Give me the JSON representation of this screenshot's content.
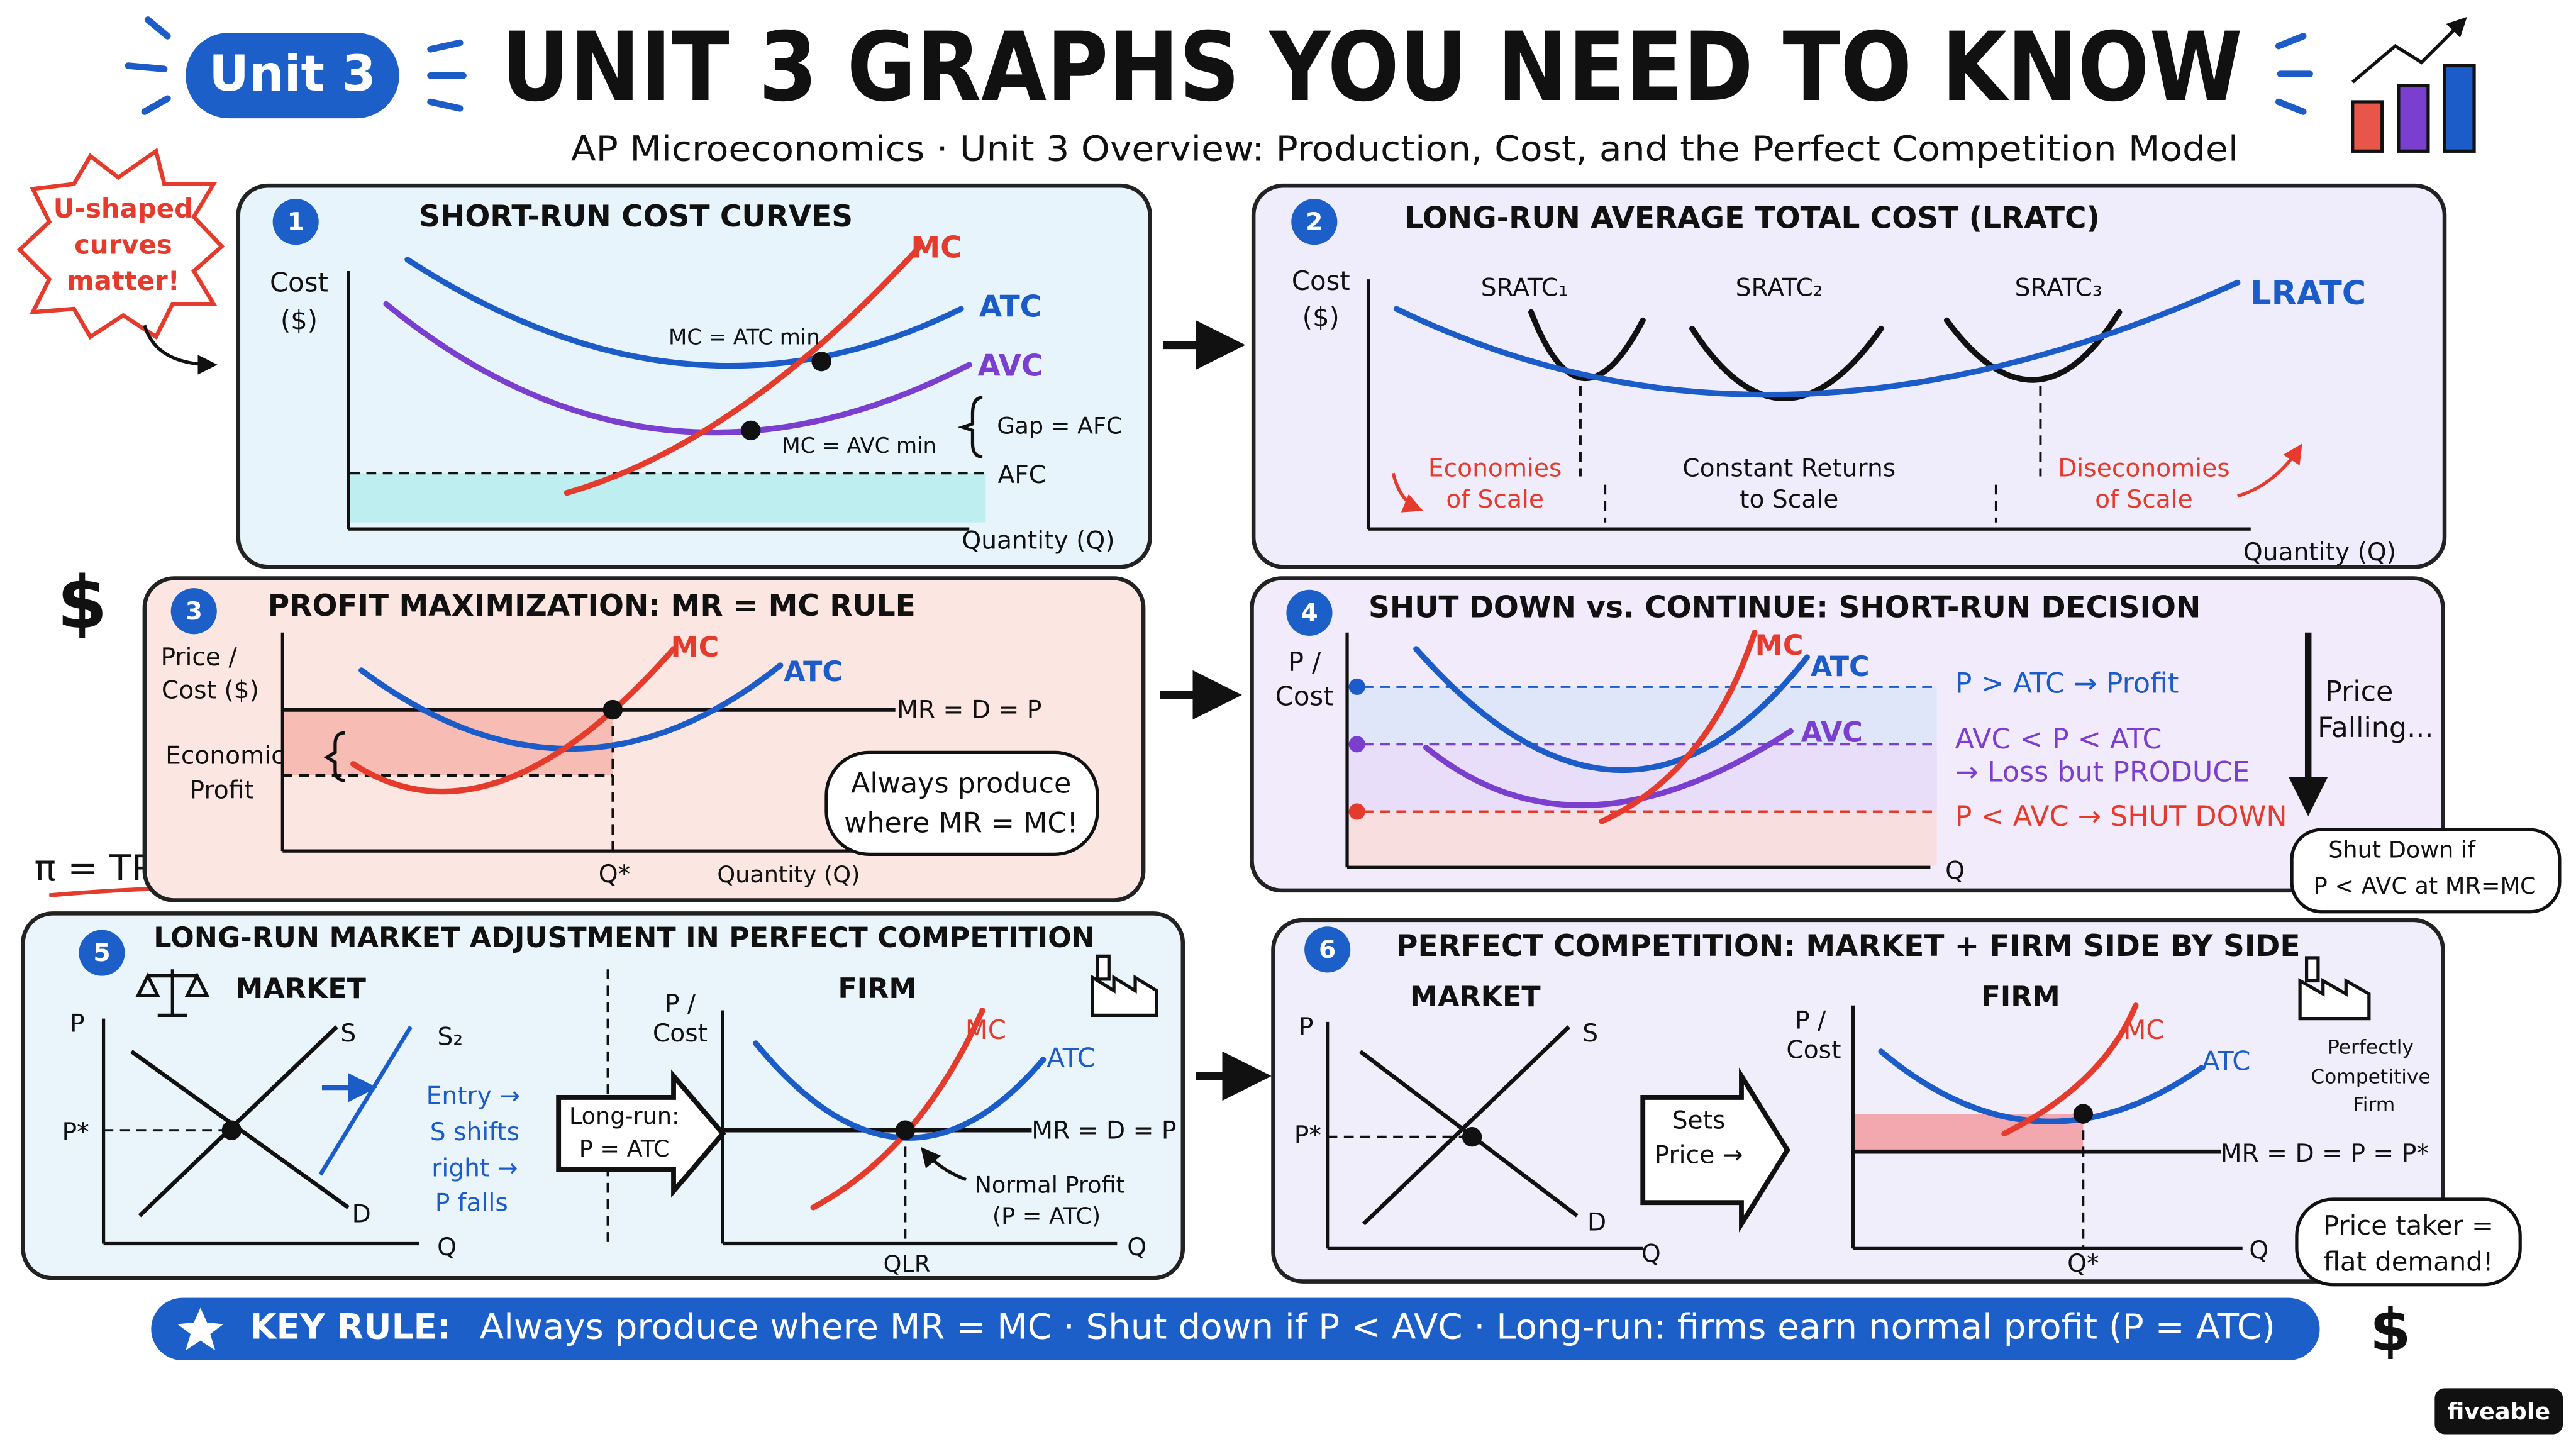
{
  "header": {
    "badge": "Unit 3",
    "title": "UNIT 3 GRAPHS YOU NEED TO KNOW",
    "subtitle": "AP Microeconomics · Unit 3 Overview: Production, Cost, and the Perfect Competition Model"
  },
  "side_notes": {
    "u_shaped": [
      "U-shaped",
      "curves",
      "matter!"
    ],
    "profit_formula": "π = TR − TC",
    "dollar_sign": "$"
  },
  "panels": [
    {
      "number": "1",
      "title": "SHORT-RUN COST CURVES",
      "y_axis": [
        "Cost",
        "($)"
      ],
      "x_axis": "Quantity (Q)",
      "curves": [
        "MC",
        "ATC",
        "AVC",
        "AFC"
      ],
      "annotations": [
        "MC = ATC min",
        "MC = AVC min",
        "Gap = AFC"
      ]
    },
    {
      "number": "2",
      "title": "LONG-RUN AVERAGE TOTAL COST (LRATC)",
      "y_axis": [
        "Cost",
        "($)"
      ],
      "x_axis": "Quantity (Q)",
      "curves": [
        "SRATC₁",
        "SRATC₂",
        "SRATC₃",
        "LRATC"
      ],
      "regions": [
        [
          "Economies",
          "of Scale"
        ],
        [
          "Constant Returns",
          "to Scale"
        ],
        [
          "Diseconomies",
          "of Scale"
        ]
      ]
    },
    {
      "number": "3",
      "title": "PROFIT MAXIMIZATION: MR = MC RULE",
      "y_axis": [
        "Price /",
        "Cost ($)"
      ],
      "x_axis": "Quantity (Q)",
      "curves": [
        "MC",
        "ATC",
        "MR = D = P"
      ],
      "annotations": [
        [
          "Economic",
          "Profit"
        ],
        "Q*"
      ],
      "callout": [
        "Always produce",
        "where MR = MC!"
      ]
    },
    {
      "number": "4",
      "title": "SHUT DOWN vs. CONTINUE: SHORT-RUN DECISION",
      "y_axis": [
        "P /",
        "Cost"
      ],
      "x_axis": "Q",
      "curves": [
        "MC",
        "ATC",
        "AVC"
      ],
      "rules": [
        [
          "P > ATC → Profit"
        ],
        [
          "AVC < P < ATC",
          "→ Loss but PRODUCE"
        ],
        [
          "P < AVC → SHUT DOWN"
        ]
      ],
      "side": [
        "Price",
        "Falling..."
      ],
      "callout": [
        "Shut Down if",
        "P < AVC at MR=MC"
      ]
    },
    {
      "number": "5",
      "title": "LONG-RUN MARKET ADJUSTMENT IN PERFECT COMPETITION",
      "market": {
        "label": "MARKET",
        "y_axis": "P",
        "x_axis": "Q",
        "price": "P*",
        "curves": [
          "S",
          "S₂",
          "D"
        ],
        "note": [
          "Entry →",
          "S shifts",
          "right →",
          "P falls"
        ]
      },
      "transition": [
        "Long-run:",
        "P = ATC"
      ],
      "firm": {
        "label": "FIRM",
        "y_axis": [
          "P /",
          "Cost"
        ],
        "x_axis": "Q",
        "quantity": "QLR",
        "curves": [
          "MC",
          "ATC",
          "MR = D = P"
        ],
        "note": [
          "Normal Profit",
          "(P = ATC)"
        ]
      }
    },
    {
      "number": "6",
      "title": "PERFECT COMPETITION: MARKET + FIRM SIDE BY SIDE",
      "market": {
        "label": "MARKET",
        "y_axis": "P",
        "x_axis": "Q",
        "price": "P*",
        "curves": [
          "S",
          "D"
        ]
      },
      "transition": [
        "Sets",
        "Price →"
      ],
      "firm": {
        "label": "FIRM",
        "y_axis": [
          "P /",
          "Cost"
        ],
        "x_axis": "Q",
        "quantity": "Q*",
        "curves": [
          "MC",
          "ATC",
          "MR = D = P = P*"
        ]
      },
      "icon_note": [
        "Perfectly",
        "Competitive",
        "Firm"
      ],
      "callout": [
        "Price taker =",
        "flat demand!"
      ]
    }
  ],
  "key_rule": {
    "label": "KEY RULE:",
    "text": "Always produce where MR = MC · Shut down if P < AVC · Long-run: firms earn normal profit (P = ATC)"
  },
  "brand": "fiveable"
}
